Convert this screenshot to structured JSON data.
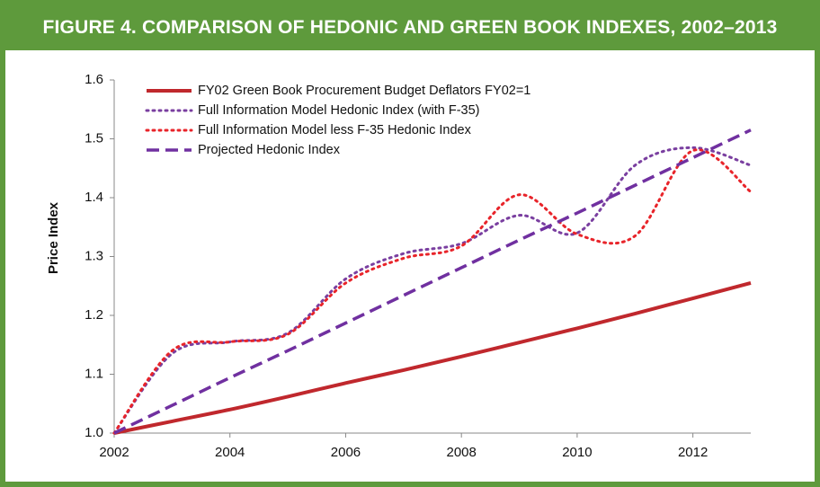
{
  "chart_data": {
    "type": "line",
    "title": "FIGURE 4. COMPARISON OF HEDONIC AND GREEN BOOK INDEXES, 2002–2013",
    "y_label": "Price Index",
    "x": [
      2002,
      2003,
      2004,
      2005,
      2006,
      2007,
      2008,
      2009,
      2010,
      2011,
      2012,
      2013
    ],
    "xlim": [
      2002,
      2013
    ],
    "xticks": [
      2002,
      2004,
      2006,
      2008,
      2010,
      2012
    ],
    "ylim": [
      1.0,
      1.6
    ],
    "yticks": [
      {
        "value": 1.0,
        "label": "1.0"
      },
      1.1,
      1.2,
      1.3,
      1.4,
      1.5,
      1.6
    ],
    "legend": "top-left",
    "series": [
      {
        "name": "FY02 Green Book Procurement Budget Deflators FY02=1",
        "color": "#c0282d",
        "dash": "solid",
        "values": [
          1.0,
          1.02,
          1.04,
          1.062,
          1.085,
          1.107,
          1.13,
          1.154,
          1.178,
          1.203,
          1.229,
          1.255
        ]
      },
      {
        "name": "Full Information Model Hedonic Index (with F-35)",
        "color": "#7a3fa0",
        "dash": "dotted",
        "values": [
          1.0,
          1.135,
          1.155,
          1.17,
          1.262,
          1.305,
          1.322,
          1.37,
          1.34,
          1.455,
          1.485,
          1.455
        ]
      },
      {
        "name": "Full Information Model less F-35 Hedonic Index",
        "color": "#e8242a",
        "dash": "dotted",
        "values": [
          1.0,
          1.14,
          1.155,
          1.168,
          1.255,
          1.297,
          1.318,
          1.405,
          1.338,
          1.335,
          1.48,
          1.41
        ]
      },
      {
        "name": "Projected Hedonic Index",
        "color": "#7030a0",
        "dash": "dashed",
        "values": [
          1.0,
          1.047,
          1.094,
          1.14,
          1.187,
          1.234,
          1.281,
          1.328,
          1.374,
          1.421,
          1.468,
          1.515
        ]
      }
    ]
  }
}
